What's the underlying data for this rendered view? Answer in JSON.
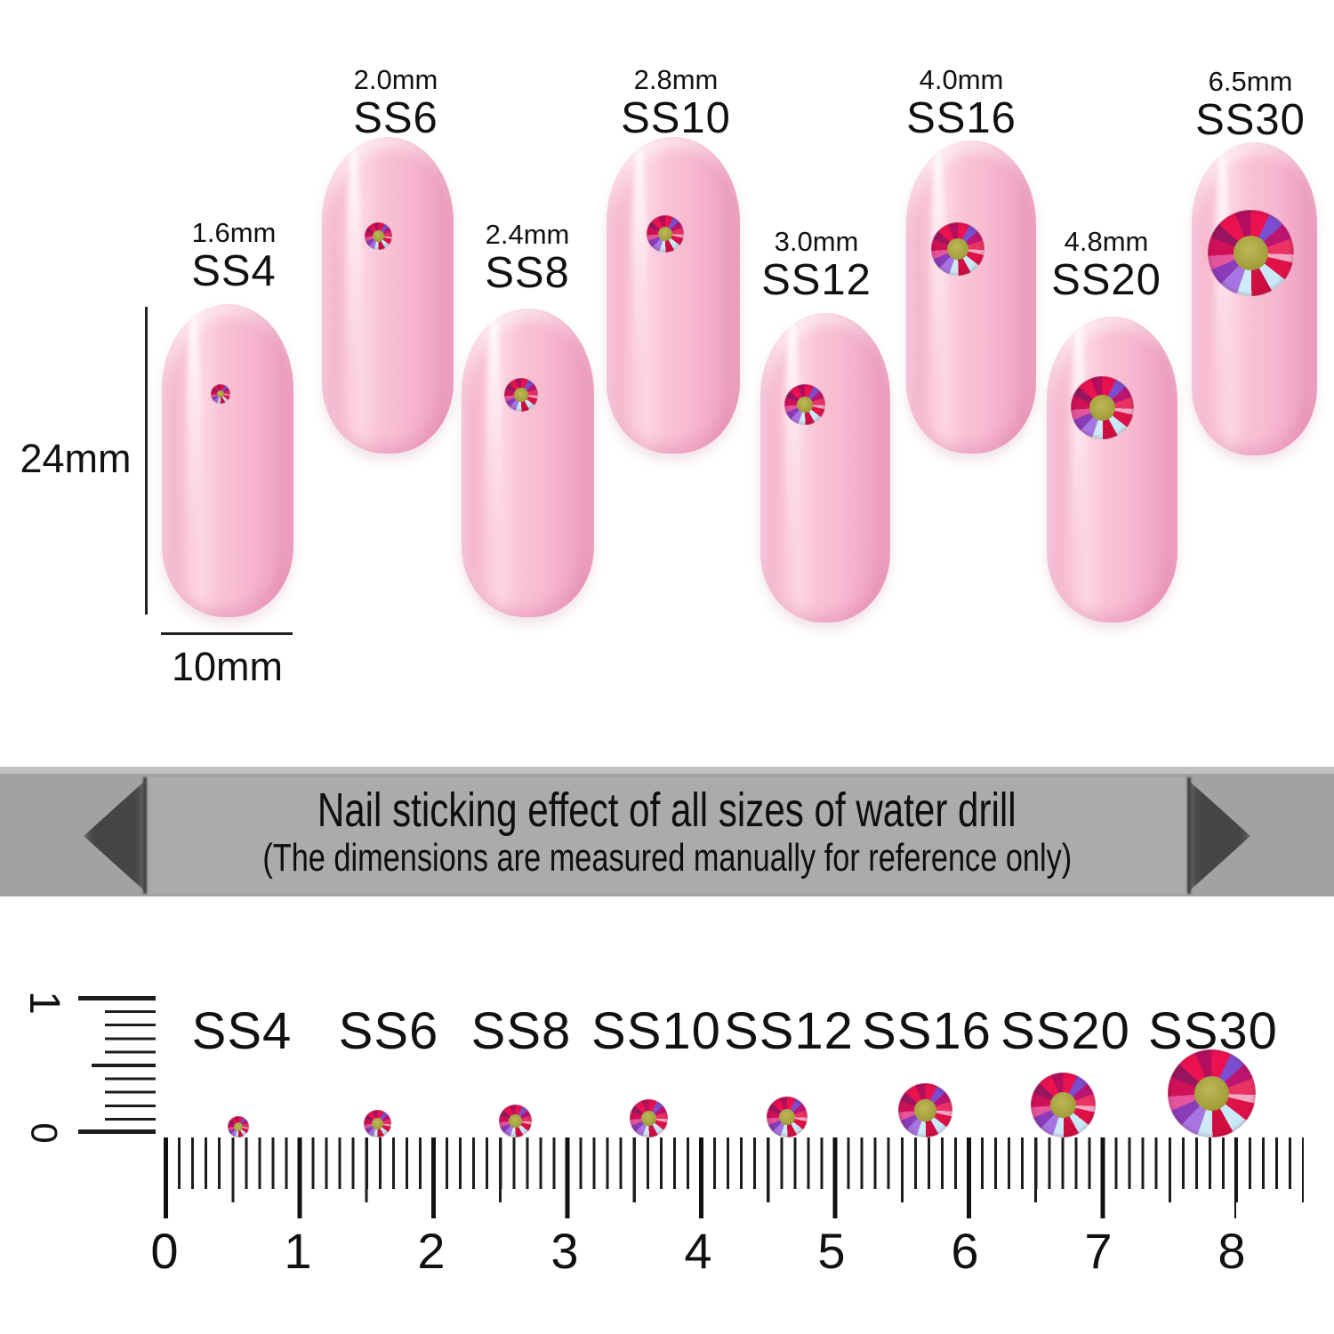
{
  "sizes": [
    {
      "mm": "1.6mm",
      "ss": "SS4"
    },
    {
      "mm": "2.0mm",
      "ss": "SS6"
    },
    {
      "mm": "2.4mm",
      "ss": "SS8"
    },
    {
      "mm": "2.8mm",
      "ss": "SS10"
    },
    {
      "mm": "3.0mm",
      "ss": "SS12"
    },
    {
      "mm": "4.0mm",
      "ss": "SS16"
    },
    {
      "mm": "4.8mm",
      "ss": "SS20"
    },
    {
      "mm": "6.5mm",
      "ss": "SS30"
    }
  ],
  "dimensions": {
    "nail_length": "24mm",
    "nail_width": "10mm"
  },
  "banner": {
    "title": "Nail sticking effect of all sizes of water drill",
    "subtitle": "(The dimensions are measured manually for reference only)"
  },
  "ruler": {
    "horizontal_numbers": [
      "0",
      "1",
      "2",
      "3",
      "4",
      "5",
      "6",
      "7",
      "8"
    ],
    "vertical_numbers": [
      "1",
      "0"
    ]
  },
  "colors": {
    "nail_pink": "#f8bcd3",
    "stone_red": "#ec1250",
    "stone_center_olive": "#a5a13d",
    "banner_gray": "#a6a6a6"
  }
}
